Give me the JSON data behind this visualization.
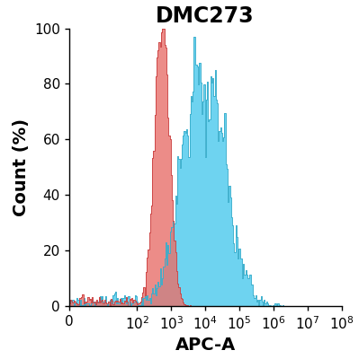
{
  "title": "DMC273",
  "xlabel": "APC-A",
  "ylabel": "Count (%)",
  "ylim": [
    0,
    100
  ],
  "yticks": [
    0,
    20,
    40,
    60,
    80,
    100
  ],
  "xtick_positions": [
    0,
    2,
    3,
    4,
    5,
    6,
    7,
    8
  ],
  "xtick_labels": [
    "0",
    "10$^2$",
    "10$^3$",
    "10$^4$",
    "10$^5$",
    "10$^6$",
    "10$^7$",
    "10$^8$"
  ],
  "red_fill": "#E8706A",
  "blue_fill": "#55CCEE",
  "background": "#FFFFFF",
  "title_fontsize": 17,
  "label_fontsize": 14,
  "tick_fontsize": 11,
  "red_peak_log": 2.72,
  "red_sigma": 0.22,
  "red_n": 6000,
  "blue_peak_log": 3.95,
  "blue_sigma": 0.65,
  "blue_n": 6000,
  "seed": 17,
  "n_bins": 250,
  "xmin": 0,
  "xmax": 8
}
